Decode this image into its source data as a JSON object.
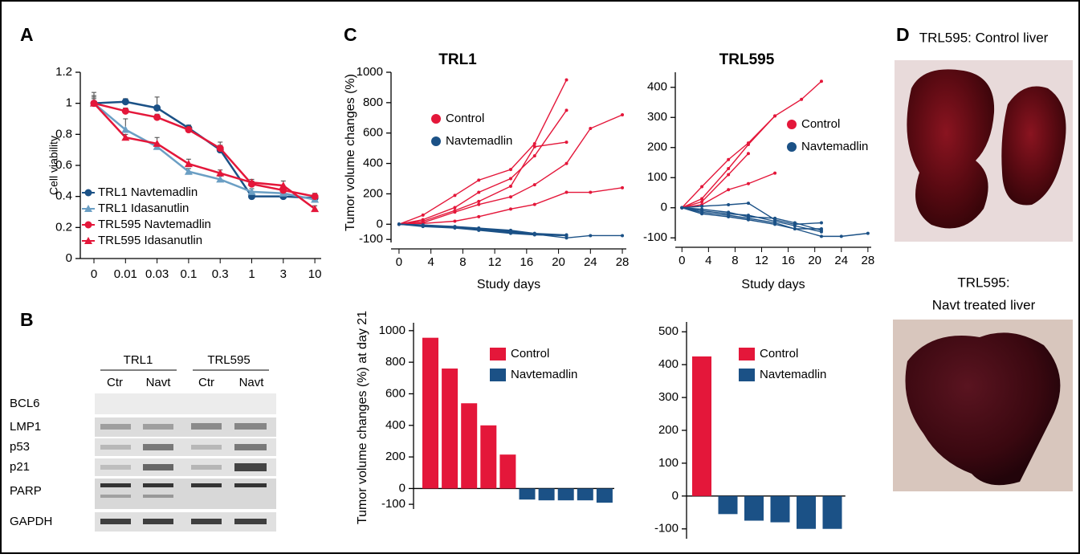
{
  "panel_labels": [
    "A",
    "B",
    "C",
    "D"
  ],
  "chart_data": [
    {
      "type": "line",
      "ylabel": "Cell viability",
      "categories": [
        "0",
        "0.01",
        "0.03",
        "0.1",
        "0.3",
        "1",
        "3",
        "10"
      ],
      "ylim": [
        0,
        1.2
      ],
      "yticks": [
        0,
        0.2,
        0.4,
        0.6,
        0.8,
        1,
        1.2
      ],
      "series": [
        {
          "name": "TRL1 Navtemadlin",
          "color": "#1b5186",
          "marker": "circle",
          "values": [
            1.0,
            1.01,
            0.97,
            0.84,
            0.7,
            0.4,
            0.4,
            0.39
          ],
          "errors": [
            0.07,
            0.02,
            0.07,
            0.02,
            0.05,
            0.02,
            0.02,
            0.02
          ]
        },
        {
          "name": "TRL1 Idasanutlin",
          "color": "#6b9fc4",
          "marker": "triangle",
          "values": [
            1.0,
            0.83,
            0.72,
            0.56,
            0.51,
            0.43,
            0.42,
            0.38
          ],
          "errors": [
            0.05,
            0.07,
            0.02,
            0.02,
            0.02,
            0.02,
            0.02,
            0.02
          ]
        },
        {
          "name": "TRL595 Navtemadlin",
          "color": "#e4173a",
          "marker": "circle",
          "values": [
            1.0,
            0.95,
            0.91,
            0.83,
            0.71,
            0.48,
            0.44,
            0.4
          ],
          "errors": [
            0.04,
            0.02,
            0.02,
            0.02,
            0.02,
            0.02,
            0.02,
            0.02
          ]
        },
        {
          "name": "TRL595 Idasanutlin",
          "color": "#e4173a",
          "marker": "triangle",
          "values": [
            1.0,
            0.78,
            0.74,
            0.61,
            0.55,
            0.49,
            0.47,
            0.32
          ],
          "errors": [
            0.03,
            0.02,
            0.04,
            0.03,
            0.02,
            0.02,
            0.03,
            0.02
          ]
        }
      ]
    },
    {
      "type": "multiline",
      "title": "TRL1",
      "xlabel": "Study days",
      "ylabel": "Tumor volume changes (%)",
      "xlim": [
        -1,
        28.5
      ],
      "xticks": [
        0,
        4,
        8,
        12,
        16,
        20,
        24,
        28
      ],
      "ylim": [
        -120,
        1000
      ],
      "yticks": [
        -100,
        0,
        200,
        400,
        600,
        800,
        1000
      ],
      "series": [
        {
          "name": "Control",
          "color": "#e4173a",
          "lines": [
            {
              "x": [
                0,
                3,
                7,
                10,
                14,
                17,
                21
              ],
              "values": [
                0,
                60,
                190,
                290,
                360,
                530,
                950
              ]
            },
            {
              "x": [
                0,
                3,
                7,
                10,
                14,
                17,
                21
              ],
              "values": [
                0,
                30,
                110,
                210,
                300,
                450,
                750
              ]
            },
            {
              "x": [
                0,
                3,
                7,
                10,
                14,
                17,
                21
              ],
              "values": [
                0,
                20,
                90,
                150,
                250,
                510,
                540
              ]
            },
            {
              "x": [
                0,
                3,
                7,
                10,
                14,
                17,
                21,
                24,
                28
              ],
              "values": [
                0,
                10,
                80,
                130,
                180,
                260,
                400,
                630,
                720
              ]
            },
            {
              "x": [
                0,
                3,
                7,
                10,
                14,
                17,
                21,
                24,
                28
              ],
              "values": [
                0,
                5,
                20,
                50,
                100,
                130,
                210,
                210,
                240
              ]
            }
          ]
        },
        {
          "name": "Navtemadlin",
          "color": "#1b5186",
          "lines": [
            {
              "x": [
                0,
                3,
                7,
                10,
                14,
                17,
                21
              ],
              "values": [
                0,
                -5,
                -15,
                -25,
                -40,
                -60,
                -70
              ]
            },
            {
              "x": [
                0,
                3,
                7,
                10,
                14,
                17,
                21
              ],
              "values": [
                0,
                -10,
                -20,
                -30,
                -45,
                -65,
                -75
              ]
            },
            {
              "x": [
                0,
                3,
                7,
                10,
                14,
                17,
                21
              ],
              "values": [
                0,
                -5,
                -20,
                -35,
                -55,
                -65,
                -75
              ]
            },
            {
              "x": [
                0,
                3,
                7,
                10,
                14,
                17,
                21
              ],
              "values": [
                0,
                -15,
                -25,
                -40,
                -60,
                -70,
                -75
              ]
            },
            {
              "x": [
                0,
                3,
                7,
                10,
                14,
                17,
                21,
                24,
                28
              ],
              "values": [
                0,
                -10,
                -20,
                -30,
                -50,
                -65,
                -90,
                -75,
                -75
              ]
            }
          ]
        }
      ]
    },
    {
      "type": "multiline",
      "title": "TRL595",
      "xlabel": "Study days",
      "xlim": [
        -1,
        28.5
      ],
      "xticks": [
        0,
        4,
        8,
        12,
        16,
        20,
        24,
        28
      ],
      "ylim": [
        -110,
        450
      ],
      "yticks": [
        -100,
        0,
        100,
        200,
        300,
        400
      ],
      "series": [
        {
          "name": "Control",
          "color": "#e4173a",
          "lines": [
            {
              "x": [
                0,
                3,
                7,
                10,
                14,
                18,
                21
              ],
              "values": [
                0,
                70,
                160,
                215,
                305,
                360,
                420
              ]
            },
            {
              "x": [
                0,
                3,
                7,
                10,
                14
              ],
              "values": [
                0,
                30,
                130,
                210,
                305
              ]
            },
            {
              "x": [
                0,
                3,
                7,
                10
              ],
              "values": [
                0,
                20,
                110,
                180
              ]
            },
            {
              "x": [
                0,
                3,
                7,
                10,
                14
              ],
              "values": [
                0,
                10,
                60,
                80,
                115
              ]
            }
          ]
        },
        {
          "name": "Navtemadlin",
          "color": "#1b5186",
          "lines": [
            {
              "x": [
                0,
                3,
                7,
                10,
                14,
                17,
                21
              ],
              "values": [
                0,
                5,
                10,
                15,
                -40,
                -55,
                -50
              ]
            },
            {
              "x": [
                0,
                3,
                7,
                10,
                14,
                17,
                21
              ],
              "values": [
                0,
                -5,
                -15,
                -30,
                -35,
                -50,
                -75
              ]
            },
            {
              "x": [
                0,
                3,
                7,
                10,
                14,
                17,
                21
              ],
              "values": [
                0,
                -10,
                -20,
                -25,
                -45,
                -60,
                -80
              ]
            },
            {
              "x": [
                0,
                3,
                7,
                10,
                14,
                17,
                21,
                24,
                28
              ],
              "values": [
                0,
                -15,
                -25,
                -35,
                -50,
                -70,
                -95,
                -95,
                -85
              ]
            },
            {
              "x": [
                0,
                3,
                7,
                10,
                14,
                17,
                21
              ],
              "values": [
                0,
                -20,
                -30,
                -40,
                -55,
                -70,
                -70
              ]
            }
          ]
        }
      ]
    },
    {
      "type": "bar",
      "ylabel": "Tumor volume changes (%) at day 21",
      "ylim": [
        -130,
        1050
      ],
      "yticks": [
        -100,
        0,
        200,
        400,
        600,
        800,
        1000
      ],
      "series": [
        {
          "name": "Control",
          "color": "#e4173a",
          "values": [
            955,
            760,
            540,
            400,
            215,
            null,
            null,
            null,
            null,
            null
          ]
        },
        {
          "name": "Navtemadlin",
          "color": "#1b5186",
          "values": [
            null,
            null,
            null,
            null,
            null,
            -70,
            -75,
            -75,
            -75,
            -90
          ]
        }
      ]
    },
    {
      "type": "bar",
      "ylim": [
        -130,
        530
      ],
      "yticks": [
        -100,
        0,
        100,
        200,
        300,
        400,
        500
      ],
      "series": [
        {
          "name": "Control",
          "color": "#e4173a",
          "values": [
            425,
            null,
            null,
            null,
            null,
            null
          ]
        },
        {
          "name": "Navtemadlin",
          "color": "#1b5186",
          "values": [
            null,
            -55,
            -75,
            -80,
            -100,
            -100
          ]
        }
      ]
    }
  ],
  "blot": {
    "groups": [
      "TRL1",
      "TRL595"
    ],
    "lanes": [
      "Ctr",
      "Navt",
      "Ctr",
      "Navt"
    ],
    "rows": [
      "BCL6",
      "LMP1",
      "p53",
      "p21",
      "PARP",
      "GAPDH"
    ]
  },
  "photos": {
    "top_caption": "TRL595: Control liver",
    "bottom_caption": [
      "TRL595:",
      "Navt treated liver"
    ]
  }
}
